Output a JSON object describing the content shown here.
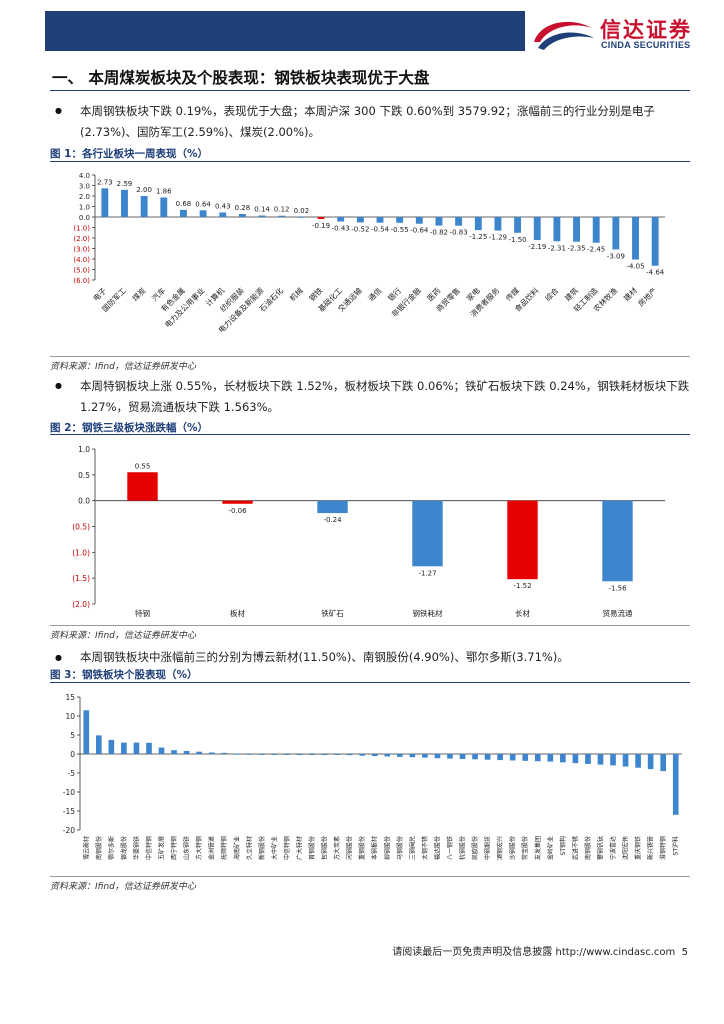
{
  "header": {
    "logo_cn": "信达证券",
    "logo_en": "CINDA SECURITIES"
  },
  "section": {
    "title": "一、  本周煤炭板块及个股表现：钢铁板块表现优于大盘"
  },
  "paragraphs": [
    "本周钢铁板块下跌 0.19%，表现优于大盘；本周沪深 300 下跌 0.60%到 3579.92；涨幅前三的行业分别是电子(2.73%)、国防军工(2.59%)、煤炭(2.00%)。",
    "本周特钢板块上涨 0.55%，长材板块下跌 1.52%，板材板块下跌 0.06%；铁矿石板块下跌 0.24%，钢铁耗材板块下跌 1.27%，贸易流通板块下跌 1.563%。",
    "本周钢铁板块中涨幅前三的分别为博云新材(11.50%)、南钢股份(4.90%)、鄂尔多斯(3.71%)。"
  ],
  "figures": {
    "fig1_title": "图 1：各行业板块一周表现（%）",
    "fig2_title": "图 2：钢铁三级板块涨跌幅（%）",
    "fig3_title": "图 3：钢铁板块个股表现（%）"
  },
  "source_text": "资料来源：Ifind，信达证券研发中心",
  "footer": {
    "text": "请阅读最后一页免责声明及信息披露 http://www.cindasc.com",
    "page": "5"
  },
  "colors": {
    "navy": "#1f3f79",
    "bar_blue": "#3d85cc",
    "bar_red": "#e60000"
  },
  "chart_data": [
    {
      "type": "bar",
      "title": "图 1：各行业板块一周表现（%）",
      "categories": [
        "电子",
        "国防军工",
        "煤炭",
        "汽车",
        "有色金属",
        "电力及公用事业",
        "计算机",
        "纺织服装",
        "电力设备及新能源",
        "石油石化",
        "机械",
        "钢铁",
        "基础化工",
        "交通运输",
        "通信",
        "银行",
        "非银行金融",
        "医药",
        "商贸零售",
        "家电",
        "消费者服务",
        "传媒",
        "食品饮料",
        "综合",
        "建筑",
        "轻工制造",
        "农林牧渔",
        "建材",
        "房地产"
      ],
      "values": [
        2.73,
        2.59,
        2.0,
        1.86,
        0.68,
        0.64,
        0.43,
        0.28,
        0.14,
        0.12,
        0.02,
        -0.19,
        -0.43,
        -0.52,
        -0.54,
        -0.55,
        -0.64,
        -0.82,
        -0.83,
        -1.25,
        -1.29,
        -1.5,
        -2.19,
        -2.31,
        -2.35,
        -2.45,
        -3.09,
        -4.05,
        -4.64
      ],
      "value_labels": [
        "2.73",
        "2.59",
        "2.00",
        "1.86",
        "0.68",
        "0.64",
        "0.43",
        "0.28",
        "0.14",
        "0.12",
        "0.02",
        "-0.19",
        "-0.43",
        "-0.52",
        "-0.54",
        "-0.55",
        "-0.64",
        "-0.82",
        "-0.83",
        "-1.25",
        "-1.29",
        "-1.50",
        "-2.19",
        "-2.31",
        "-2.35",
        "-2.45",
        "-3.09",
        "-4.05",
        "-4.64"
      ],
      "highlight": [
        "钢铁"
      ],
      "ylim": [
        -6.0,
        4.0
      ],
      "yticks": [
        4.0,
        3.0,
        2.0,
        1.0,
        0.0,
        -1.0,
        -2.0,
        -3.0,
        -4.0,
        -5.0,
        -6.0
      ],
      "ytick_labels": [
        "4.0",
        "3.0",
        "2.0",
        "1.0",
        "0.0",
        "(1.0)",
        "(2.0)",
        "(3.0)",
        "(4.0)",
        "(5.0)",
        "(6.0)"
      ]
    },
    {
      "type": "bar",
      "title": "图 2：钢铁三级板块涨跌幅（%）",
      "categories": [
        "特钢",
        "板材",
        "铁矿石",
        "钢铁耗材",
        "长材",
        "贸易流通"
      ],
      "values": [
        0.55,
        -0.06,
        -0.24,
        -1.27,
        -1.52,
        -1.56
      ],
      "value_labels": [
        "0.55",
        "-0.06",
        "-0.24",
        "-1.27",
        "-1.52",
        "-1.56"
      ],
      "bar_colors": [
        "#e60000",
        "#e60000",
        "#3d85cc",
        "#3d85cc",
        "#e60000",
        "#3d85cc"
      ],
      "ylim": [
        -2.0,
        1.0
      ],
      "yticks": [
        1.0,
        0.5,
        0.0,
        -0.5,
        -1.0,
        -1.5,
        -2.0
      ],
      "ytick_labels": [
        "1.0",
        "0.5",
        "0.0",
        "(0.5)",
        "(1.0)",
        "(1.5)",
        "(2.0)"
      ]
    },
    {
      "type": "bar",
      "title": "图 3：钢铁板块个股表现（%）",
      "categories": [
        "博云新材",
        "南钢股份",
        "鄂尔多斯",
        "银龙股份",
        "华菱钢铁",
        "中信特钢",
        "五矿发展",
        "西宁特钢",
        "山东钢铁",
        "方大特钢",
        "金洲管道",
        "抚顺特钢",
        "海南矿业",
        "久立特材",
        "新钢股份",
        "大中矿业",
        "中信特钢",
        "广大特材",
        "首钢股份",
        "包钢股份",
        "方大炭素",
        "河钢股份",
        "重钢股份",
        "本钢板材",
        "柳钢股份",
        "马钢股份",
        "三钢闽光",
        "太钢不锈",
        "福达股份",
        "八一钢铁",
        "杭钢股份",
        "凯欧股份",
        "中钢期货",
        "酒钢宏兴",
        "沙钢股份",
        "常宝股份",
        "友发集团",
        "金岭矿业",
        "ST钢构",
        "武进不锈",
        "南钢股份",
        "攀钢钒钛",
        "宁波富达",
        "沈阳宏伟",
        "重庆钢铁",
        "新兴铸管",
        "淮钢特钢",
        "ST沪科"
      ],
      "values": [
        11.5,
        4.9,
        3.71,
        3.0,
        3.0,
        2.95,
        1.7,
        1.0,
        0.8,
        0.6,
        0.4,
        0.3,
        0.1,
        0.05,
        0.03,
        0.02,
        0.01,
        0.0,
        -0.02,
        -0.05,
        -0.1,
        -0.3,
        -0.45,
        -0.55,
        -0.65,
        -0.75,
        -0.85,
        -0.95,
        -1.1,
        -1.2,
        -1.3,
        -1.4,
        -1.5,
        -1.6,
        -1.7,
        -1.8,
        -1.9,
        -2.0,
        -2.2,
        -2.4,
        -2.6,
        -2.8,
        -3.0,
        -3.3,
        -3.6,
        -4.0,
        -4.5,
        -16.0
      ],
      "ylim": [
        -20,
        15
      ],
      "yticks": [
        15,
        10,
        5,
        0,
        -5,
        -10,
        -15,
        -20
      ],
      "ytick_labels": [
        "15",
        "10",
        "5",
        "0",
        "-5",
        "-10",
        "-15",
        "-20"
      ]
    }
  ]
}
